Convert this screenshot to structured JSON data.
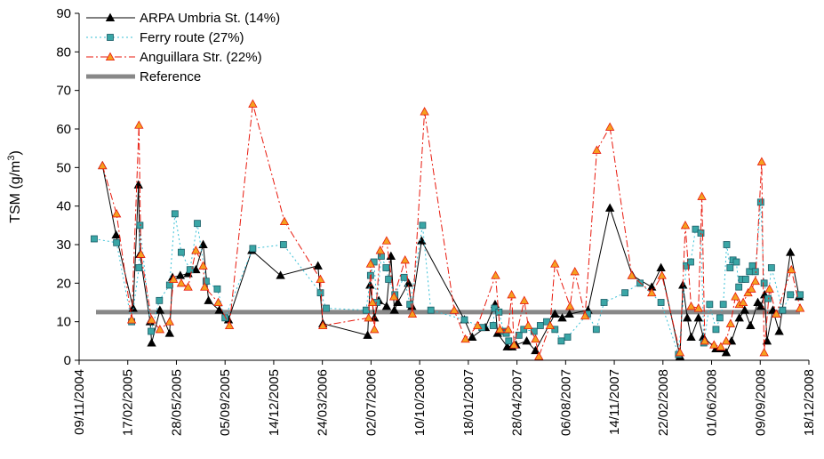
{
  "chart_data": {
    "type": "line",
    "title": "",
    "xlabel": "",
    "ylabel": {
      "main": "TSM (g/m",
      "sup": "3",
      "close": ")"
    },
    "ylim": [
      0,
      90
    ],
    "yticks": [
      0,
      10,
      20,
      30,
      40,
      50,
      60,
      70,
      80,
      90
    ],
    "xlim": [
      "2004-11-09",
      "2008-12-18"
    ],
    "xtick_labels": [
      "09/11/2004",
      "17/02/2005",
      "28/05/2005",
      "05/09/2005",
      "14/12/2005",
      "24/03/2006",
      "02/07/2006",
      "10/10/2006",
      "18/01/2007",
      "28/04/2007",
      "06/08/2007",
      "14/11/2007",
      "22/02/2008",
      "01/06/2008",
      "09/09/2008",
      "18/12/2008"
    ],
    "grid": false,
    "legend_position": "top-left",
    "reference": {
      "name": "Reference",
      "value": 12.5,
      "color": "#888888"
    },
    "series": [
      {
        "name": "ARPA Umbria St. (14%)",
        "color": "#000000",
        "line": "solid",
        "marker": "triangle",
        "marker_fill": "#000000",
        "points": [
          [
            "2004-12-27",
            50.5
          ],
          [
            "2005-01-24",
            32.5
          ],
          [
            "2005-02-28",
            13.5
          ],
          [
            "2005-03-11",
            45.5
          ],
          [
            "2005-03-14",
            27.5
          ],
          [
            "2005-04-04",
            10
          ],
          [
            "2005-04-07",
            4.5
          ],
          [
            "2005-04-24",
            13
          ],
          [
            "2005-05-14",
            7
          ],
          [
            "2005-05-20",
            21.5
          ],
          [
            "2005-06-05",
            22
          ],
          [
            "2005-06-21",
            22.5
          ],
          [
            "2005-07-07",
            23.5
          ],
          [
            "2005-07-22",
            30
          ],
          [
            "2005-08-02",
            15.5
          ],
          [
            "2005-08-24",
            13
          ],
          [
            "2005-09-12",
            10.5
          ],
          [
            "2005-10-30",
            28.5
          ],
          [
            "2005-12-28",
            22
          ],
          [
            "2006-03-15",
            24.5
          ],
          [
            "2006-03-25",
            9.5
          ],
          [
            "2006-06-25",
            6.5
          ],
          [
            "2006-06-30",
            19.5
          ],
          [
            "2006-07-09",
            11
          ],
          [
            "2006-07-18",
            15.5
          ],
          [
            "2006-08-03",
            14
          ],
          [
            "2006-08-12",
            27
          ],
          [
            "2006-08-19",
            13
          ],
          [
            "2006-08-26",
            15
          ],
          [
            "2006-09-17",
            20
          ],
          [
            "2006-09-24",
            14
          ],
          [
            "2006-10-14",
            31
          ],
          [
            "2007-01-10",
            10.5
          ],
          [
            "2007-01-26",
            6
          ],
          [
            "2007-02-22",
            8.5
          ],
          [
            "2007-03-14",
            14.5
          ],
          [
            "2007-03-19",
            7
          ],
          [
            "2007-04-08",
            3.5
          ],
          [
            "2007-04-18",
            3.5
          ],
          [
            "2007-04-26",
            4
          ],
          [
            "2007-05-18",
            5
          ],
          [
            "2007-06-05",
            2.5
          ],
          [
            "2007-07-15",
            12
          ],
          [
            "2007-07-30",
            11
          ],
          [
            "2007-08-14",
            12
          ],
          [
            "2007-09-21",
            13
          ],
          [
            "2007-11-05",
            39.5
          ],
          [
            "2007-12-21",
            22
          ],
          [
            "2008-01-30",
            19
          ],
          [
            "2008-02-18",
            24
          ],
          [
            "2008-03-28",
            1
          ],
          [
            "2008-04-03",
            19.5
          ],
          [
            "2008-04-12",
            11
          ],
          [
            "2008-04-20",
            6
          ],
          [
            "2008-05-05",
            11
          ],
          [
            "2008-05-15",
            6
          ],
          [
            "2008-06-10",
            3
          ],
          [
            "2008-06-20",
            3
          ],
          [
            "2008-07-01",
            2
          ],
          [
            "2008-07-12",
            5
          ],
          [
            "2008-07-28",
            11
          ],
          [
            "2008-08-08",
            13
          ],
          [
            "2008-08-20",
            9
          ],
          [
            "2008-09-04",
            15
          ],
          [
            "2008-09-10",
            14
          ],
          [
            "2008-09-18",
            17
          ],
          [
            "2008-09-23",
            5
          ],
          [
            "2008-10-05",
            13
          ],
          [
            "2008-10-18",
            7.5
          ],
          [
            "2008-11-10",
            28
          ],
          [
            "2008-11-28",
            16.5
          ]
        ]
      },
      {
        "name": "Ferry route (27%)",
        "color": "#39c0d6",
        "line": "dotted",
        "marker": "square",
        "marker_fill": "#3aa6a6",
        "points": [
          [
            "2004-12-10",
            31.5
          ],
          [
            "2005-01-25",
            30.5
          ],
          [
            "2005-02-25",
            10
          ],
          [
            "2005-03-14",
            35
          ],
          [
            "2005-03-12",
            24
          ],
          [
            "2005-04-06",
            7.5
          ],
          [
            "2005-04-23",
            15.5
          ],
          [
            "2005-05-14",
            19.5
          ],
          [
            "2005-05-25",
            38
          ],
          [
            "2005-06-07",
            28
          ],
          [
            "2005-06-25",
            23.5
          ],
          [
            "2005-07-10",
            35.5
          ],
          [
            "2005-07-28",
            20.5
          ],
          [
            "2005-08-20",
            18.5
          ],
          [
            "2005-09-05",
            11
          ],
          [
            "2005-11-01",
            29
          ],
          [
            "2006-01-03",
            30
          ],
          [
            "2006-03-20",
            17.5
          ],
          [
            "2006-04-01",
            13.5
          ],
          [
            "2006-06-22",
            13
          ],
          [
            "2006-07-01",
            22
          ],
          [
            "2006-07-08",
            25.5
          ],
          [
            "2006-07-14",
            15
          ],
          [
            "2006-07-23",
            27
          ],
          [
            "2006-08-02",
            24
          ],
          [
            "2006-08-07",
            21
          ],
          [
            "2006-08-20",
            17
          ],
          [
            "2006-09-08",
            21.5
          ],
          [
            "2006-09-20",
            14.5
          ],
          [
            "2006-10-16",
            35
          ],
          [
            "2006-11-02",
            13
          ],
          [
            "2007-01-10",
            10.5
          ],
          [
            "2007-02-15",
            8.5
          ],
          [
            "2007-03-10",
            9
          ],
          [
            "2007-03-13",
            13.5
          ],
          [
            "2007-03-22",
            12.5
          ],
          [
            "2007-04-01",
            7.5
          ],
          [
            "2007-04-06",
            7
          ],
          [
            "2007-04-11",
            5
          ],
          [
            "2007-05-02",
            6.5
          ],
          [
            "2007-05-12",
            8
          ],
          [
            "2007-06-02",
            7.5
          ],
          [
            "2007-06-15",
            9
          ],
          [
            "2007-06-28",
            10
          ],
          [
            "2007-07-15",
            8
          ],
          [
            "2007-07-28",
            5
          ],
          [
            "2007-08-10",
            6
          ],
          [
            "2007-09-20",
            12
          ],
          [
            "2007-10-08",
            8
          ],
          [
            "2007-10-24",
            15
          ],
          [
            "2007-12-06",
            17.5
          ],
          [
            "2008-01-06",
            20
          ],
          [
            "2008-02-18",
            15
          ],
          [
            "2008-03-25",
            1.5
          ],
          [
            "2008-04-10",
            24.5
          ],
          [
            "2008-04-19",
            25.5
          ],
          [
            "2008-04-29",
            34
          ],
          [
            "2008-05-10",
            33
          ],
          [
            "2008-05-16",
            4.5
          ],
          [
            "2008-05-28",
            14.5
          ],
          [
            "2008-06-10",
            8
          ],
          [
            "2008-06-18",
            11
          ],
          [
            "2008-06-25",
            14.5
          ],
          [
            "2008-07-02",
            30
          ],
          [
            "2008-07-09",
            24
          ],
          [
            "2008-07-15",
            26
          ],
          [
            "2008-07-22",
            25.5
          ],
          [
            "2008-07-27",
            19
          ],
          [
            "2008-08-02",
            21
          ],
          [
            "2008-08-10",
            21
          ],
          [
            "2008-08-18",
            23
          ],
          [
            "2008-08-24",
            24.5
          ],
          [
            "2008-08-30",
            23
          ],
          [
            "2008-09-10",
            41
          ],
          [
            "2008-09-17",
            20
          ],
          [
            "2008-09-25",
            16
          ],
          [
            "2008-10-02",
            24
          ],
          [
            "2008-10-25",
            13
          ],
          [
            "2008-11-10",
            17
          ],
          [
            "2008-11-30",
            17
          ]
        ]
      },
      {
        "name": "Anguillara Str. (22%)",
        "color": "#e8180c",
        "line": "dashdot",
        "marker": "triangle",
        "marker_fill": "#f5a020",
        "points": [
          [
            "2004-12-27",
            50.5
          ],
          [
            "2005-01-25",
            38
          ],
          [
            "2005-02-25",
            10.5
          ],
          [
            "2005-03-12",
            61
          ],
          [
            "2005-03-16",
            27.5
          ],
          [
            "2005-04-07",
            10.5
          ],
          [
            "2005-04-24",
            8
          ],
          [
            "2005-05-14",
            10
          ],
          [
            "2005-05-22",
            21
          ],
          [
            "2005-06-07",
            20
          ],
          [
            "2005-06-21",
            19
          ],
          [
            "2005-07-07",
            28.5
          ],
          [
            "2005-07-22",
            24.5
          ],
          [
            "2005-07-25",
            19
          ],
          [
            "2005-08-22",
            15
          ],
          [
            "2005-09-14",
            9
          ],
          [
            "2005-11-01",
            66.5
          ],
          [
            "2006-01-05",
            36
          ],
          [
            "2006-03-20",
            21
          ],
          [
            "2006-03-25",
            9
          ],
          [
            "2006-06-27",
            11
          ],
          [
            "2006-07-01",
            25
          ],
          [
            "2006-07-05",
            15
          ],
          [
            "2006-07-09",
            8
          ],
          [
            "2006-07-21",
            28.5
          ],
          [
            "2006-08-03",
            31
          ],
          [
            "2006-08-18",
            16.5
          ],
          [
            "2006-09-10",
            26
          ],
          [
            "2006-09-25",
            12
          ],
          [
            "2006-10-20",
            64.5
          ],
          [
            "2006-12-20",
            13
          ],
          [
            "2007-01-12",
            5.5
          ],
          [
            "2007-02-06",
            9
          ],
          [
            "2007-03-15",
            22
          ],
          [
            "2007-03-24",
            8
          ],
          [
            "2007-04-10",
            8
          ],
          [
            "2007-04-17",
            17
          ],
          [
            "2007-04-22",
            4
          ],
          [
            "2007-05-13",
            15.5
          ],
          [
            "2007-05-21",
            9
          ],
          [
            "2007-06-05",
            5.5
          ],
          [
            "2007-06-12",
            1
          ],
          [
            "2007-07-05",
            9
          ],
          [
            "2007-07-15",
            25
          ],
          [
            "2007-08-15",
            14
          ],
          [
            "2007-08-25",
            23
          ],
          [
            "2007-09-15",
            11.5
          ],
          [
            "2007-10-09",
            54.5
          ],
          [
            "2007-11-05",
            60.5
          ],
          [
            "2007-12-20",
            22
          ],
          [
            "2008-01-30",
            17.5
          ],
          [
            "2008-02-20",
            22
          ],
          [
            "2008-03-28",
            2
          ],
          [
            "2008-04-08",
            35
          ],
          [
            "2008-04-20",
            14
          ],
          [
            "2008-05-05",
            13.5
          ],
          [
            "2008-05-12",
            42.5
          ],
          [
            "2008-05-18",
            5
          ],
          [
            "2008-06-06",
            4
          ],
          [
            "2008-06-20",
            3.5
          ],
          [
            "2008-07-01",
            5
          ],
          [
            "2008-07-10",
            9.5
          ],
          [
            "2008-07-20",
            16.5
          ],
          [
            "2008-07-28",
            14.5
          ],
          [
            "2008-08-05",
            15
          ],
          [
            "2008-08-15",
            17.5
          ],
          [
            "2008-08-22",
            18.5
          ],
          [
            "2008-08-30",
            20.5
          ],
          [
            "2008-09-12",
            51.5
          ],
          [
            "2008-09-17",
            2
          ],
          [
            "2008-09-28",
            18.5
          ],
          [
            "2008-10-12",
            12
          ],
          [
            "2008-11-12",
            23.5
          ],
          [
            "2008-11-30",
            13.5
          ]
        ]
      }
    ]
  }
}
